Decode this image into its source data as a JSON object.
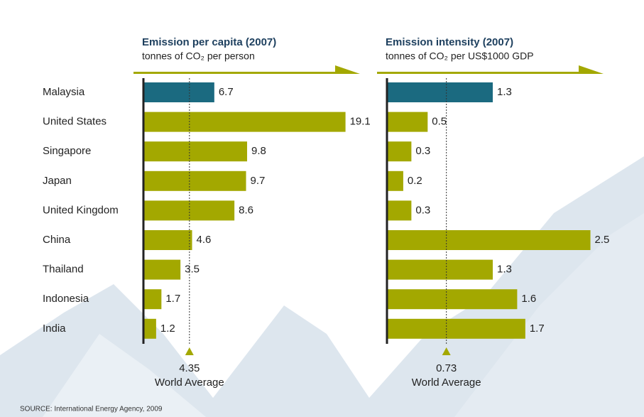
{
  "source": "SOURCE: International Energy Agency, 2009",
  "chart_data": [
    {
      "type": "hbar",
      "title": "Emission per capita (2007)",
      "subtitle": "tonnes of CO₂ per person",
      "categories": [
        "Malaysia",
        "United States",
        "Singapore",
        "Japan",
        "United Kingdom",
        "China",
        "Thailand",
        "Indonesia",
        "India"
      ],
      "values": [
        6.7,
        19.1,
        9.8,
        9.7,
        8.6,
        4.6,
        3.5,
        1.7,
        1.2
      ],
      "colors": [
        "#1b6a80",
        "#a3a800",
        "#a3a800",
        "#a3a800",
        "#a3a800",
        "#a3a800",
        "#a3a800",
        "#a3a800",
        "#a3a800"
      ],
      "xlim": [
        0,
        20
      ],
      "reference": {
        "value": 4.35,
        "label": "World Average"
      }
    },
    {
      "type": "hbar",
      "title": "Emission intensity (2007)",
      "subtitle": "tonnes of CO₂ per US$1000 GDP",
      "values": [
        1.3,
        0.5,
        0.3,
        0.2,
        0.3,
        2.5,
        1.3,
        1.6,
        1.7
      ],
      "colors": [
        "#1b6a80",
        "#a3a800",
        "#a3a800",
        "#a3a800",
        "#a3a800",
        "#a3a800",
        "#a3a800",
        "#a3a800",
        "#a3a800"
      ],
      "xlim": [
        0,
        2.6
      ],
      "reference": {
        "value": 0.73,
        "label": "World Average"
      }
    }
  ]
}
